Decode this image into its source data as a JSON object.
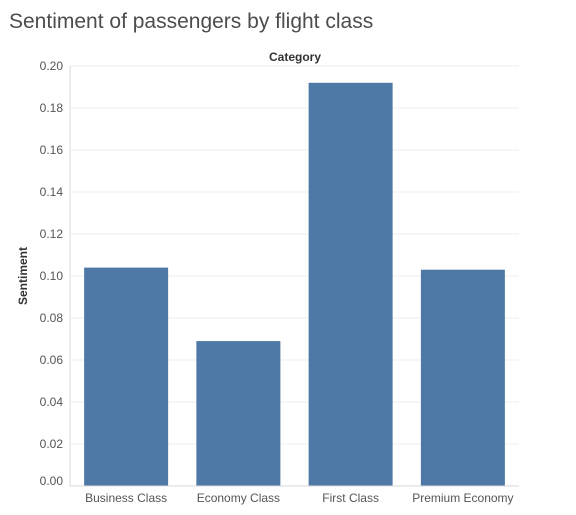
{
  "chart_data": {
    "type": "bar",
    "title": "Sentiment of passengers by flight class",
    "column_header": "Category",
    "ylabel": "Sentiment",
    "xlabel": "",
    "categories": [
      "Business Class",
      "Economy Class",
      "First Class",
      "Premium Economy"
    ],
    "values": [
      0.104,
      0.069,
      0.192,
      0.103
    ],
    "ylim": [
      0,
      0.2
    ],
    "yticks": [
      "0.00",
      "0.02",
      "0.04",
      "0.06",
      "0.08",
      "0.10",
      "0.12",
      "0.14",
      "0.16",
      "0.18",
      "0.20"
    ],
    "bar_color": "#4e79a7",
    "grid": true,
    "legend": "none"
  }
}
